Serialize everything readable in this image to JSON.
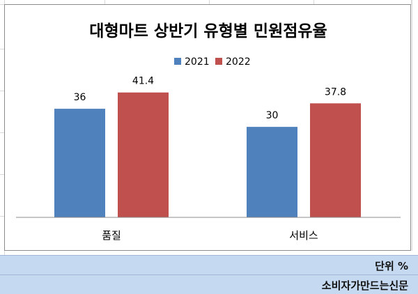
{
  "chart_data": {
    "type": "bar",
    "title": "대형마트 상반기 유형별 민원점유율",
    "categories": [
      "품질",
      "서비스"
    ],
    "series": [
      {
        "name": "2021",
        "values": [
          36,
          30
        ],
        "color": "#4f81bd"
      },
      {
        "name": "2022",
        "values": [
          41.4,
          37.8
        ],
        "color": "#c0504d"
      }
    ],
    "value_labels": {
      "2021": [
        "36",
        "30"
      ],
      "2022": [
        "41.4",
        "37.8"
      ]
    },
    "ylim": [
      0,
      45
    ],
    "grid": false,
    "legend_position": "top"
  },
  "footer": {
    "unit_text": "단위 %",
    "source_text": "소비자가만드는신문"
  }
}
